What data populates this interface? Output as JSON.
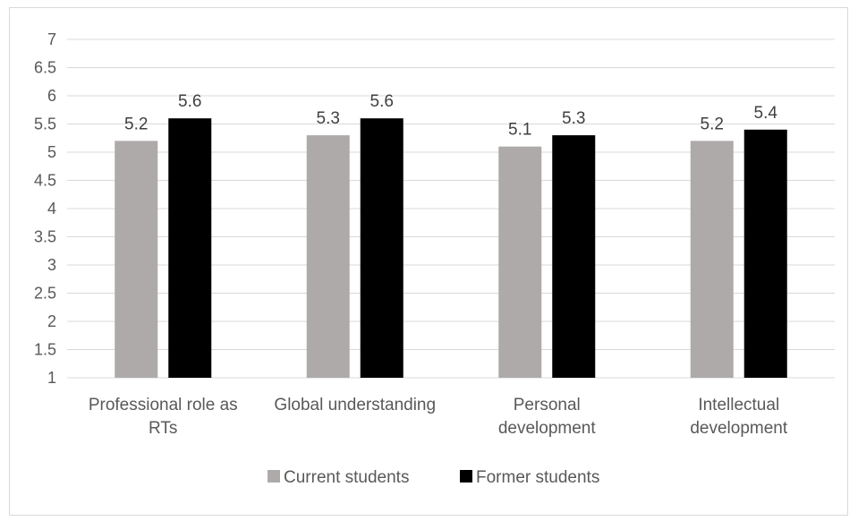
{
  "chart_data": {
    "type": "bar",
    "categories": [
      [
        "Professional role as",
        "RTs"
      ],
      [
        "Global understanding"
      ],
      [
        "Personal",
        "development"
      ],
      [
        "Intellectual",
        "development"
      ]
    ],
    "series": [
      {
        "name": "Current students",
        "values": [
          5.2,
          5.3,
          5.1,
          5.2
        ],
        "color": "#aeaaaa"
      },
      {
        "name": "Former students",
        "values": [
          5.6,
          5.6,
          5.3,
          5.4
        ],
        "color": "#000000"
      }
    ],
    "data_labels": [
      [
        "5.2",
        "5.3",
        "5.1",
        "5.2"
      ],
      [
        "5.6",
        "5.6",
        "5.3",
        "5.4"
      ]
    ],
    "yticks": [
      "1",
      "1.5",
      "2",
      "2.5",
      "3",
      "3.5",
      "4",
      "4.5",
      "5",
      "5.5",
      "6",
      "6.5",
      "7"
    ],
    "ylim": [
      1,
      7
    ],
    "grid": true,
    "legend_position": "bottom",
    "gridline_color": "#d9d9d9"
  }
}
